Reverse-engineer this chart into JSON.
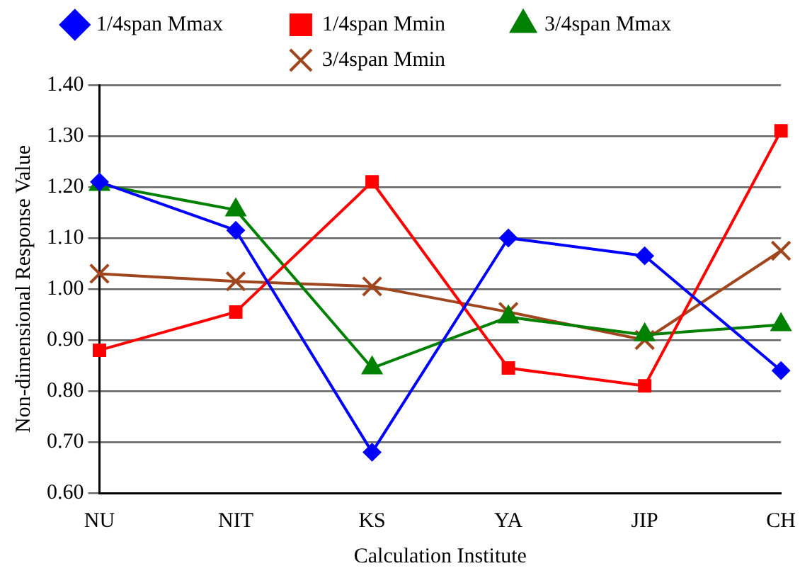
{
  "chart_data": {
    "type": "line",
    "xlabel": "Calculation Institute",
    "ylabel": "Non-dimensional Response Value",
    "categories": [
      "NU",
      "NIT",
      "KS",
      "YA",
      "JIP",
      "CH"
    ],
    "series": [
      {
        "name": "1/4span Mmax",
        "color": "#0000ff",
        "marker": "diamond",
        "values": [
          1.21,
          1.115,
          0.68,
          1.1,
          1.065,
          0.84
        ]
      },
      {
        "name": "1/4span Mmin",
        "color": "#ff0000",
        "marker": "square",
        "values": [
          0.88,
          0.955,
          1.21,
          0.845,
          0.81,
          1.31
        ]
      },
      {
        "name": "3/4span Mmax",
        "color": "#008000",
        "marker": "triangle",
        "values": [
          1.205,
          1.155,
          0.845,
          0.945,
          0.91,
          0.93
        ]
      },
      {
        "name": "3/4span Mmin",
        "color": "#a0461e",
        "marker": "cross",
        "values": [
          1.03,
          1.015,
          1.005,
          0.955,
          0.9,
          1.075
        ]
      }
    ],
    "ylim": [
      0.6,
      1.4
    ],
    "yticks": [
      {
        "value": 0.6,
        "label": "0.60"
      },
      {
        "value": 0.7,
        "label": "0.70"
      },
      {
        "value": 0.8,
        "label": "0.80"
      },
      {
        "value": 0.9,
        "label": "0.90"
      },
      {
        "value": 1.0,
        "label": "1.00"
      },
      {
        "value": 1.1,
        "label": "1.10"
      },
      {
        "value": 1.2,
        "label": "1.20"
      },
      {
        "value": 1.3,
        "label": "1.30"
      },
      {
        "value": 1.4,
        "label": "1.40"
      }
    ],
    "grid": "y",
    "legend": "top",
    "line_style": "solid"
  }
}
